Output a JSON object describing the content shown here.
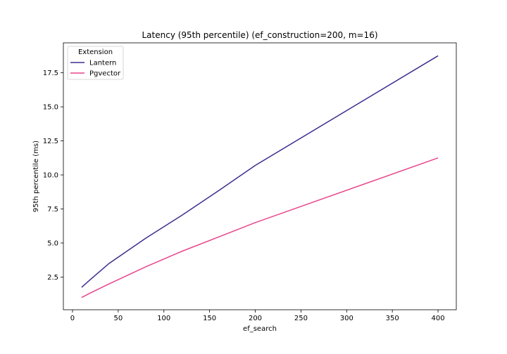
{
  "chart_data": {
    "type": "line",
    "title": "Latency (95th percentile) (ef_construction=200, m=16)",
    "xlabel": "ef_search",
    "ylabel": "95th percentile (ms)",
    "xlim": [
      -10,
      420
    ],
    "ylim": [
      0.1,
      19.7
    ],
    "x_ticks": [
      0,
      50,
      100,
      150,
      200,
      250,
      300,
      350,
      400
    ],
    "x_tick_labels": [
      "0",
      "50",
      "100",
      "150",
      "200",
      "250",
      "300",
      "350",
      "400"
    ],
    "y_ticks": [
      2.5,
      5.0,
      7.5,
      10.0,
      12.5,
      15.0,
      17.5
    ],
    "y_tick_labels": [
      "2.5",
      "5.0",
      "7.5",
      "10.0",
      "12.5",
      "15.0",
      "17.5"
    ],
    "grid": false,
    "legend": {
      "title": "Extension",
      "placement": "top-left"
    },
    "series": [
      {
        "name": "Lantern",
        "color": "#3b2f8f",
        "x": [
          10,
          20,
          40,
          80,
          120,
          160,
          200,
          400
        ],
        "y": [
          1.75,
          2.35,
          3.5,
          5.35,
          7.05,
          8.85,
          10.7,
          18.75
        ]
      },
      {
        "name": "Pgvector",
        "color": "#e8458b",
        "x": [
          10,
          20,
          40,
          80,
          120,
          160,
          200,
          400
        ],
        "y": [
          1.0,
          1.35,
          2.0,
          3.25,
          4.4,
          5.45,
          6.5,
          11.25
        ]
      }
    ]
  }
}
